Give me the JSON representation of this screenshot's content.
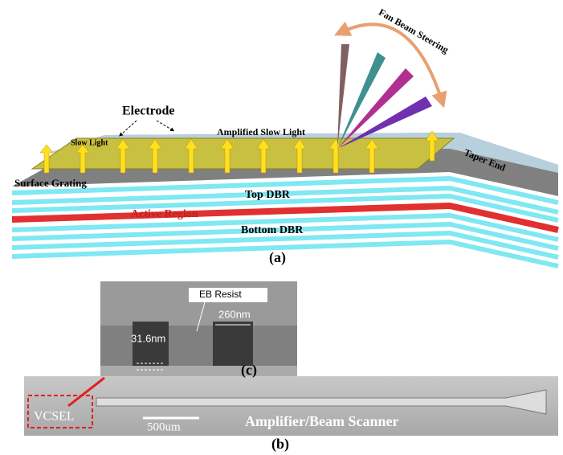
{
  "panel_a": {
    "beam_label": "Fan Beam Steering",
    "electrode": "Electrode",
    "slow_light": "Slow Light",
    "amplified": "Amplified Slow Light",
    "taper_end": "Taper End",
    "surface_grating": "Surface Grating",
    "top_dbr": "Top DBR",
    "active_region": "Active  Region",
    "bottom_dbr": "Bottom DBR",
    "caption": "(a)"
  },
  "panel_c": {
    "eb_resist": "EB Resist",
    "width": "260nm",
    "depth": "31.6nm",
    "caption": "(c)"
  },
  "panel_b": {
    "vcsel": "VCSEL",
    "scale": "500um",
    "scanner": "Amplifier/Beam Scanner",
    "caption": "(b)"
  }
}
